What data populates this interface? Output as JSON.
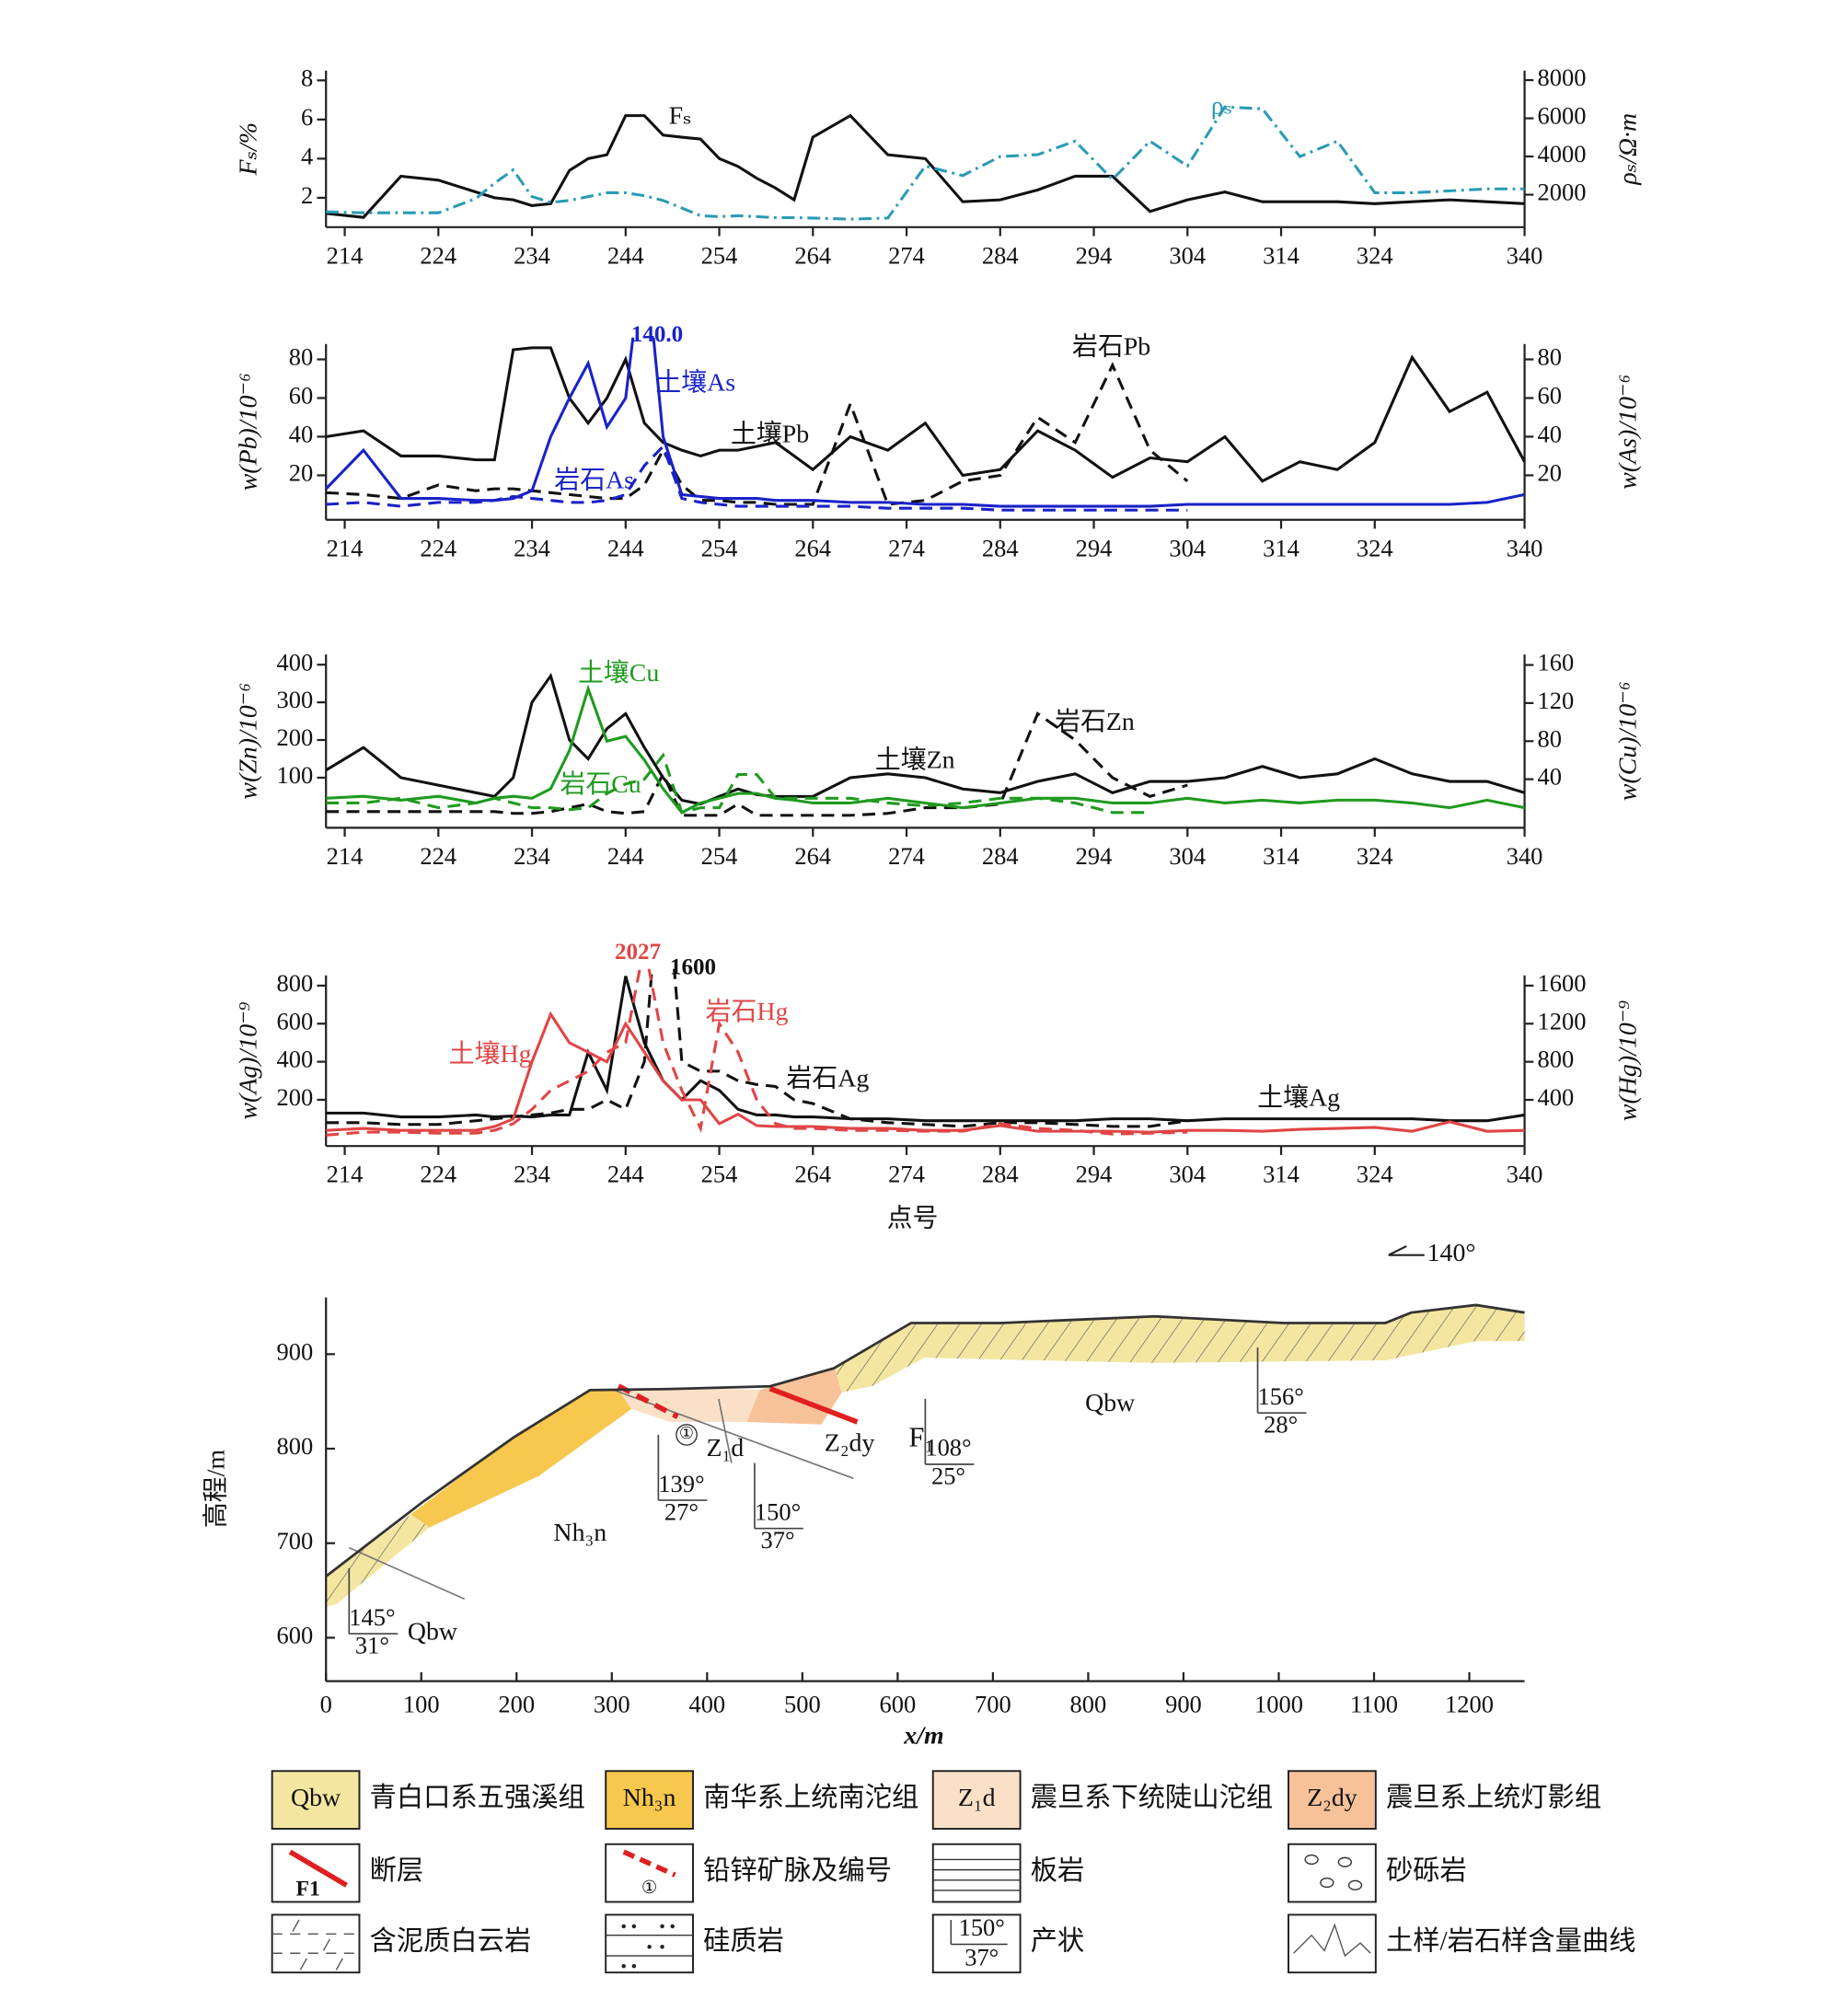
{
  "chart_data": [
    {
      "type": "line",
      "xlim": [
        212,
        340
      ],
      "xticks": [
        214,
        224,
        234,
        244,
        254,
        264,
        274,
        284,
        294,
        304,
        314,
        324,
        340
      ],
      "ylim": [
        0.5,
        8.5
      ],
      "yticks": [
        2,
        4,
        6,
        8
      ],
      "y2lim": [
        300,
        8500
      ],
      "y2ticks": [
        2000,
        4000,
        6000,
        8000
      ],
      "ylabel": "Fₛ/%",
      "y2label": "ρₛ/Ω·m",
      "x": [
        212,
        216,
        220,
        224,
        228,
        230,
        232,
        234,
        236,
        238,
        240,
        242,
        244,
        246,
        248,
        250,
        252,
        254,
        256,
        258,
        260,
        262,
        264,
        268,
        272,
        276,
        280,
        284,
        288,
        292,
        296,
        300,
        304,
        308,
        312,
        316,
        320,
        324,
        328,
        332,
        336,
        340
      ],
      "series": [
        {
          "name": "Fₛ",
          "color": "#111111",
          "dash": "solid",
          "values": [
            1.2,
            1.0,
            3.1,
            2.9,
            2.3,
            2.0,
            1.9,
            1.6,
            1.7,
            3.4,
            4.0,
            4.2,
            6.2,
            6.2,
            5.2,
            5.1,
            5.0,
            4.0,
            3.6,
            3.0,
            2.5,
            1.9,
            5.1,
            6.2,
            4.2,
            4.0,
            1.8,
            1.9,
            2.4,
            3.1,
            3.1,
            1.3,
            1.9,
            2.3,
            1.8,
            1.8,
            1.8,
            1.7,
            1.8,
            1.9,
            1.8,
            1.7
          ]
        },
        {
          "name": "ρₛ",
          "color": "#2a9bb5",
          "dash": "dashdot",
          "axis": "y2",
          "values": [
            1100,
            1050,
            1050,
            1050,
            1800,
            2600,
            3300,
            1900,
            1600,
            1700,
            1900,
            2100,
            2100,
            1950,
            1700,
            1300,
            900,
            850,
            900,
            850,
            800,
            800,
            780,
            720,
            780,
            3500,
            3000,
            4000,
            4100,
            4800,
            2800,
            4800,
            3500,
            6600,
            6500,
            4000,
            4800,
            2100,
            2100,
            2200,
            2300,
            2300
          ]
        }
      ],
      "annotations": []
    },
    {
      "type": "line",
      "xlim": [
        212,
        340
      ],
      "xticks": [
        214,
        224,
        234,
        244,
        254,
        264,
        274,
        284,
        294,
        304,
        314,
        324,
        340
      ],
      "ylim": [
        -3,
        88
      ],
      "yticks": [
        20,
        40,
        60,
        80
      ],
      "y2lim": [
        -3,
        88
      ],
      "y2ticks": [
        20,
        40,
        60,
        80
      ],
      "ylabel": "w(Pb)/10⁻⁶",
      "y2label": "w(As)/10⁻⁶",
      "x": [
        212,
        216,
        220,
        224,
        228,
        230,
        232,
        234,
        236,
        238,
        240,
        242,
        244,
        246,
        248,
        250,
        252,
        254,
        256,
        258,
        260,
        262,
        264,
        268,
        272,
        276,
        280,
        284,
        288,
        292,
        296,
        300,
        304,
        308,
        312,
        316,
        320,
        324,
        328,
        332,
        336,
        340
      ],
      "series": [
        {
          "name": "土壤Pb",
          "color": "#111111",
          "dash": "solid",
          "values": [
            40,
            43,
            30,
            30,
            28,
            28,
            85,
            86,
            86,
            60,
            47,
            60,
            80,
            47,
            37,
            33,
            30,
            33,
            33,
            35,
            37,
            30,
            23,
            40,
            33,
            47,
            20,
            23,
            43,
            33,
            19,
            29,
            27,
            40,
            17,
            27,
            23,
            37,
            81,
            53,
            63,
            27
          ]
        },
        {
          "name": "岩石Pb",
          "color": "#111111",
          "dash": "dashed",
          "values": [
            11,
            10,
            8,
            15,
            12,
            13,
            13,
            12,
            11,
            10,
            9,
            8,
            8,
            15,
            33,
            15,
            7,
            7,
            6,
            6,
            5,
            5,
            5,
            57,
            5,
            7,
            17,
            20,
            50,
            37,
            77,
            33,
            17,
            null,
            null,
            null,
            null,
            null,
            null,
            null,
            null,
            null
          ]
        },
        {
          "name": "土壤As",
          "color": "#1a22c8",
          "dash": "solid",
          "axis": "y2",
          "values": [
            13,
            33,
            8,
            8,
            7,
            7,
            8,
            12,
            40,
            60,
            78,
            45,
            60,
            140,
            40,
            10,
            9,
            8,
            8,
            8,
            7,
            7,
            7,
            6,
            6,
            5,
            5,
            4,
            4,
            4,
            4,
            4,
            5,
            5,
            5,
            5,
            5,
            5,
            5,
            5,
            6,
            10
          ]
        },
        {
          "name": "岩石As",
          "color": "#1a22c8",
          "dash": "dashed",
          "axis": "y2",
          "values": [
            5,
            6,
            4,
            6,
            6,
            7,
            9,
            8,
            7,
            6,
            6,
            7,
            10,
            25,
            35,
            8,
            6,
            5,
            4,
            4,
            4,
            4,
            4,
            4,
            3,
            3,
            3,
            2,
            2,
            2,
            2,
            2,
            2,
            null,
            null,
            null,
            null,
            null,
            null,
            null,
            null,
            null
          ]
        }
      ],
      "annotations": [
        {
          "text": "140.0",
          "color": "#1a22c8"
        }
      ]
    },
    {
      "type": "line",
      "xlim": [
        212,
        340
      ],
      "xticks": [
        214,
        224,
        234,
        244,
        254,
        264,
        274,
        284,
        294,
        304,
        314,
        324,
        340
      ],
      "ylim": [
        -33,
        427
      ],
      "yticks": [
        100,
        200,
        300,
        400
      ],
      "y2lim": [
        -11,
        171
      ],
      "y2ticks": [
        40,
        80,
        120,
        160
      ],
      "ylabel": "w(Zn)/10⁻⁶",
      "y2label": "w(Cu)/10⁻⁶",
      "x": [
        212,
        216,
        220,
        224,
        228,
        230,
        232,
        234,
        236,
        238,
        240,
        242,
        244,
        246,
        248,
        250,
        252,
        254,
        256,
        258,
        260,
        262,
        264,
        268,
        272,
        276,
        280,
        284,
        288,
        292,
        296,
        300,
        304,
        308,
        312,
        316,
        320,
        324,
        328,
        332,
        336,
        340
      ],
      "series": [
        {
          "name": "土壤Zn",
          "color": "#111111",
          "dash": "solid",
          "values": [
            120,
            180,
            100,
            80,
            60,
            50,
            100,
            300,
            370,
            200,
            150,
            230,
            270,
            180,
            100,
            40,
            30,
            50,
            70,
            55,
            50,
            50,
            50,
            100,
            110,
            100,
            70,
            60,
            90,
            110,
            60,
            90,
            90,
            100,
            130,
            100,
            110,
            150,
            110,
            90,
            90,
            60
          ]
        },
        {
          "name": "岩石Zn",
          "color": "#111111",
          "dash": "dashed",
          "values": [
            10,
            10,
            10,
            10,
            10,
            10,
            5,
            5,
            10,
            20,
            30,
            10,
            5,
            10,
            110,
            0,
            0,
            0,
            30,
            0,
            0,
            0,
            0,
            0,
            5,
            20,
            20,
            30,
            270,
            200,
            100,
            50,
            80,
            null,
            null,
            null,
            null,
            null,
            null,
            null,
            null,
            null
          ]
        },
        {
          "name": "土壤Cu",
          "color": "#1f9a1f",
          "dash": "solid",
          "axis": "y2",
          "values": [
            20,
            22,
            18,
            22,
            15,
            20,
            22,
            20,
            30,
            70,
            135,
            80,
            85,
            60,
            30,
            5,
            15,
            20,
            25,
            25,
            20,
            18,
            15,
            15,
            20,
            15,
            10,
            15,
            20,
            20,
            15,
            15,
            20,
            15,
            18,
            15,
            18,
            18,
            15,
            10,
            18,
            10
          ]
        },
        {
          "name": "岩石Cu",
          "color": "#1f9a1f",
          "dash": "dashed",
          "axis": "y2",
          "values": [
            15,
            15,
            20,
            10,
            15,
            20,
            15,
            10,
            10,
            8,
            10,
            25,
            35,
            40,
            65,
            5,
            10,
            10,
            45,
            45,
            20,
            20,
            20,
            20,
            15,
            12,
            15,
            20,
            20,
            15,
            5,
            5,
            null,
            null,
            null,
            null,
            null,
            null,
            null,
            null,
            null,
            null
          ]
        }
      ],
      "annotations": []
    },
    {
      "type": "line",
      "xlim": [
        212,
        340
      ],
      "xticks": [
        214,
        224,
        234,
        244,
        254,
        264,
        274,
        284,
        294,
        304,
        314,
        324,
        340
      ],
      "ylim": [
        -43,
        854
      ],
      "yticks": [
        200,
        400,
        600,
        800
      ],
      "y2lim": [
        -85,
        1708
      ],
      "y2ticks": [
        400,
        800,
        1200,
        1600
      ],
      "ylabel": "w(Ag)/10⁻⁹",
      "y2label": "w(Hg)/10⁻⁹",
      "xlabel": "点号",
      "x": [
        212,
        216,
        220,
        224,
        228,
        230,
        232,
        234,
        236,
        238,
        240,
        242,
        244,
        246,
        248,
        250,
        252,
        254,
        256,
        258,
        260,
        262,
        264,
        268,
        272,
        276,
        280,
        284,
        288,
        292,
        296,
        300,
        304,
        308,
        312,
        316,
        320,
        324,
        328,
        332,
        336,
        340
      ],
      "series": [
        {
          "name": "土壤Ag",
          "color": "#111111",
          "dash": "solid",
          "values": [
            130,
            130,
            110,
            110,
            120,
            110,
            115,
            110,
            120,
            120,
            450,
            250,
            850,
            500,
            300,
            200,
            300,
            250,
            150,
            120,
            120,
            110,
            110,
            100,
            100,
            90,
            90,
            90,
            90,
            90,
            100,
            100,
            90,
            100,
            100,
            100,
            100,
            100,
            100,
            90,
            90,
            120
          ]
        },
        {
          "name": "岩石Ag",
          "color": "#111111",
          "dash": "dashed",
          "values": [
            80,
            80,
            70,
            70,
            90,
            100,
            110,
            120,
            130,
            150,
            150,
            200,
            150,
            400,
            1600,
            400,
            350,
            350,
            300,
            280,
            270,
            200,
            180,
            100,
            80,
            70,
            60,
            80,
            80,
            70,
            60,
            60,
            90,
            null,
            null,
            null,
            null,
            null,
            null,
            null,
            null,
            null
          ]
        },
        {
          "name": "土壤Hg",
          "color": "#e04545",
          "dash": "solid",
          "axis": "y2",
          "values": [
            80,
            100,
            80,
            80,
            80,
            120,
            200,
            800,
            1300,
            1000,
            900,
            800,
            1200,
            900,
            600,
            400,
            400,
            150,
            250,
            130,
            120,
            120,
            120,
            100,
            100,
            80,
            80,
            130,
            70,
            70,
            70,
            60,
            80,
            80,
            70,
            90,
            100,
            110,
            70,
            170,
            70,
            80
          ]
        },
        {
          "name": "岩石Hg",
          "color": "#e04545",
          "dash": "dashed",
          "axis": "y2",
          "values": [
            30,
            60,
            60,
            50,
            50,
            80,
            150,
            300,
            500,
            600,
            700,
            900,
            1000,
            2027,
            1000,
            500,
            100,
            1200,
            900,
            400,
            150,
            100,
            100,
            80,
            80,
            70,
            70,
            150,
            100,
            80,
            40,
            50,
            60,
            null,
            null,
            null,
            null,
            null,
            null,
            null,
            null,
            null
          ]
        }
      ],
      "annotations": [
        {
          "text": "2027",
          "color": "#e04545"
        },
        {
          "text": "1600",
          "color": "#111111"
        }
      ]
    },
    {
      "type": "profile",
      "xlim": [
        0,
        1258
      ],
      "xticks": [
        0,
        100,
        200,
        300,
        400,
        500,
        600,
        700,
        800,
        900,
        1000,
        1100,
        1200
      ],
      "ylim": [
        554,
        960
      ],
      "yticks": [
        600,
        700,
        800,
        900
      ],
      "xlabel": "x/m",
      "ylabel": "高程/m",
      "direction": "140°",
      "x": [
        0,
        102,
        197,
        277,
        358,
        466,
        533,
        614,
        708,
        870,
        1005,
        1112,
        1139,
        1207,
        1258
      ],
      "values": [
        665,
        744,
        812,
        862,
        863,
        866,
        885,
        933,
        933,
        940,
        933,
        933,
        944,
        952,
        944
      ],
      "labels": [
        "Qbw",
        "Nh₃n",
        "Z₁d",
        "Z₂dy",
        "F₁",
        "Qbw",
        "①"
      ],
      "attitudes": [
        {
          "strike": "145°",
          "dip": "31°"
        },
        {
          "strike": "139°",
          "dip": "27°"
        },
        {
          "strike": "150°",
          "dip": "37°"
        },
        {
          "strike": "108°",
          "dip": "25°"
        },
        {
          "strike": "156°",
          "dip": "28°"
        }
      ]
    }
  ],
  "legend": [
    {
      "symbol": "Qbw",
      "label": "青白口系五强溪组"
    },
    {
      "symbol": "Nh₃n",
      "label": "南华系上统南沱组"
    },
    {
      "symbol": "Z₁d",
      "label": "震旦系下统陡山沱组"
    },
    {
      "symbol": "Z₂dy",
      "label": "震旦系上统灯影组"
    },
    {
      "symbol": "F1",
      "label": "断层"
    },
    {
      "symbol": "①",
      "label": "铅锌矿脉及编号"
    },
    {
      "label": "板岩"
    },
    {
      "label": "砂砾岩"
    },
    {
      "label": "含泥质白云岩"
    },
    {
      "label": "硅质岩"
    },
    {
      "symbol": [
        "150°",
        "37°"
      ],
      "label": "产状"
    },
    {
      "label": "土样/岩石样含量曲线"
    }
  ]
}
